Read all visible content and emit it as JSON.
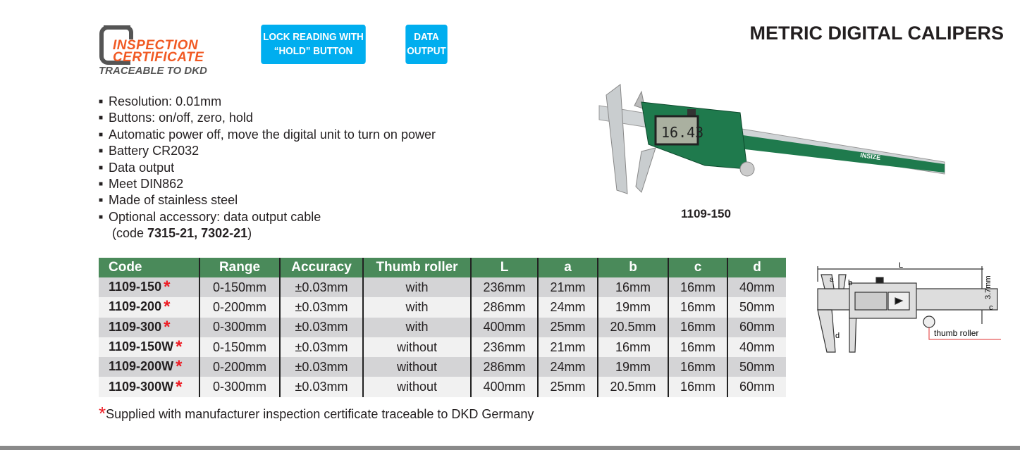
{
  "logo": {
    "line1": "INSPECTION",
    "line2": "CERTIFICATE",
    "line3": "TRACEABLE TO DKD"
  },
  "badges": [
    {
      "label1": "LOCK READING WITH",
      "label2": "“HOLD” BUTTON"
    },
    {
      "label1": "DATA",
      "label2": "OUTPUT"
    }
  ],
  "title": "METRIC DIGITAL CALIPERS",
  "features": [
    "Resolution: 0.01mm",
    "Buttons: on/off, zero, hold",
    "Automatic power off, move the digital unit to turn on power",
    "Battery CR2032",
    "Data output",
    "Meet DIN862",
    "Made of stainless steel",
    "Optional accessory: data output cable"
  ],
  "accessory_code": {
    "prefix": "(code ",
    "codes": "7315-21, 7302-21",
    "suffix": ")"
  },
  "product_image": {
    "caption": "1109-150",
    "display": "16.43",
    "brand": "INSIZE"
  },
  "table": {
    "headers": [
      "Code",
      "Range",
      "Accuracy",
      "Thumb roller",
      "L",
      "a",
      "b",
      "c",
      "d"
    ],
    "rows": [
      [
        "1109-150",
        "0-150mm",
        "±0.03mm",
        "with",
        "236mm",
        "21mm",
        "16mm",
        "16mm",
        "40mm"
      ],
      [
        "1109-200",
        "0-200mm",
        "±0.03mm",
        "with",
        "286mm",
        "24mm",
        "19mm",
        "16mm",
        "50mm"
      ],
      [
        "1109-300",
        "0-300mm",
        "±0.03mm",
        "with",
        "400mm",
        "25mm",
        "20.5mm",
        "16mm",
        "60mm"
      ],
      [
        "1109-150W",
        "0-150mm",
        "±0.03mm",
        "without",
        "236mm",
        "21mm",
        "16mm",
        "16mm",
        "40mm"
      ],
      [
        "1109-200W",
        "0-200mm",
        "±0.03mm",
        "without",
        "286mm",
        "24mm",
        "19mm",
        "16mm",
        "50mm"
      ],
      [
        "1109-300W",
        "0-300mm",
        "±0.03mm",
        "without",
        "400mm",
        "25mm",
        "20.5mm",
        "16mm",
        "60mm"
      ]
    ],
    "star": "*"
  },
  "footnote": {
    "star": "*",
    "text": "Supplied with manufacturer inspection certificate traceable to DKD Germany"
  },
  "diagram": {
    "L": "L",
    "a": "a",
    "b": "b",
    "c": "c",
    "d": "d",
    "dim": "3.7mm",
    "thumb_label": "thumb roller"
  },
  "colors": {
    "header_green": "#4a8a5a",
    "badge_blue": "#00aeef",
    "cert_orange": "#f15a24",
    "star_red": "#ed1c24"
  }
}
